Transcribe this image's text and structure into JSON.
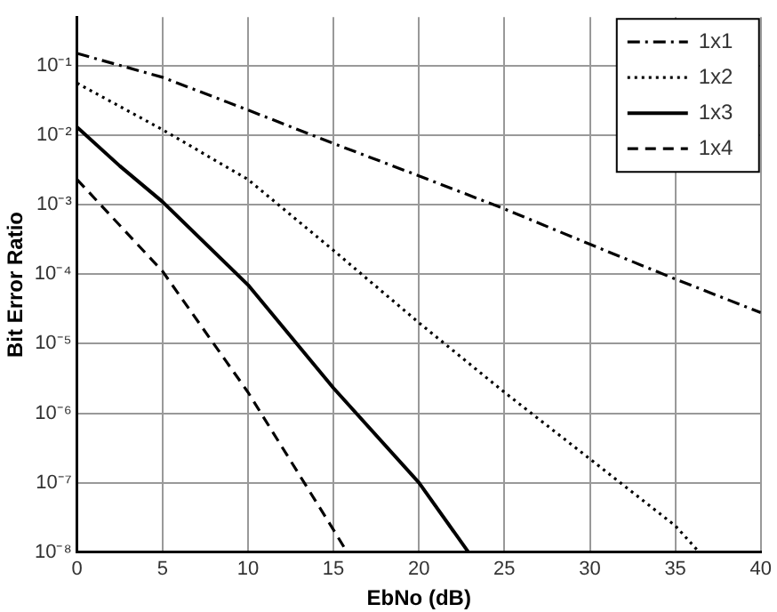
{
  "chart_data": {
    "type": "line",
    "xlabel": "EbNo (dB)",
    "ylabel": "Bit Error Ratio",
    "log": "y",
    "grid": true,
    "legend": "top right",
    "marker": "none",
    "xlim": [
      0,
      40
    ],
    "xticks": [
      0,
      5,
      10,
      15,
      20,
      25,
      30,
      35,
      40
    ],
    "ylim": [
      1e-08,
      0.5
    ],
    "yticks": [
      {
        "value": 1e-08,
        "label": "10⁻⁸"
      },
      {
        "value": 1e-07,
        "label": "10⁻⁷"
      },
      {
        "value": 1e-06,
        "label": "10⁻⁶"
      },
      {
        "value": 1e-05,
        "label": "10⁻⁵"
      },
      {
        "value": 0.0001,
        "label": "10⁻⁴"
      },
      {
        "value": 0.001,
        "label": "10⁻³"
      },
      {
        "value": 0.01,
        "label": "10⁻²"
      },
      {
        "value": 0.1,
        "label": "10⁻¹"
      }
    ],
    "series": [
      {
        "name": "1x1",
        "color": "#000000",
        "line_style": "dashdot",
        "x": [
          0,
          5,
          10,
          15,
          20,
          25,
          30,
          35,
          40
        ],
        "values": [
          0.15,
          0.068,
          0.023,
          0.0076,
          0.0026,
          0.00087,
          0.00027,
          8.5e-05,
          2.8e-05
        ]
      },
      {
        "name": "1x2",
        "color": "#000000",
        "line_style": "dotted",
        "x": [
          0,
          5,
          10,
          15,
          20,
          25,
          30,
          35,
          36.4
        ],
        "values": [
          0.056,
          0.012,
          0.0023,
          0.00022,
          2e-05,
          2e-06,
          2.2e-07,
          2.4e-08,
          1e-08
        ]
      },
      {
        "name": "1x3",
        "color": "#000000",
        "line_style": "solid",
        "x": [
          0,
          2.5,
          5,
          10,
          15,
          20,
          22.9
        ],
        "values": [
          0.013,
          0.0036,
          0.0011,
          7e-05,
          2.3e-06,
          1e-07,
          1e-08
        ]
      },
      {
        "name": "1x4",
        "color": "#000000",
        "line_style": "dashed",
        "x": [
          0,
          5,
          10,
          15,
          15.8
        ],
        "values": [
          0.0023,
          0.00011,
          2e-06,
          2.1e-08,
          1e-08
        ]
      }
    ]
  }
}
